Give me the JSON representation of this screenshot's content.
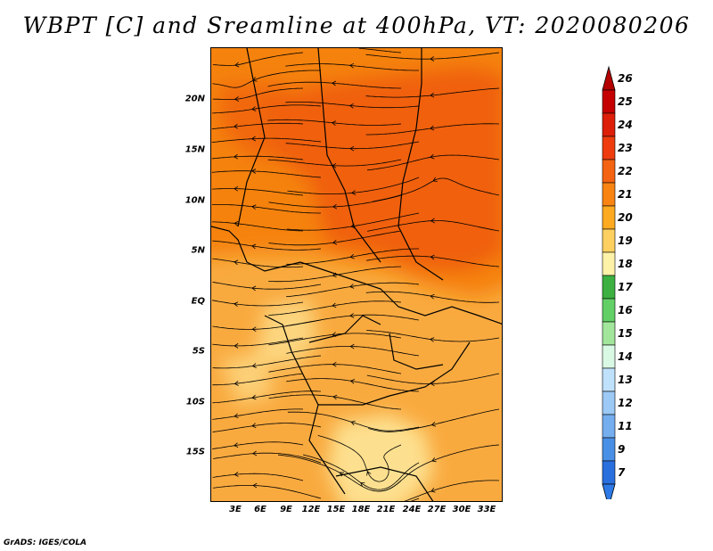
{
  "title": "WBPT [C] and Sreamline at 400hPa, VT: 2020080206",
  "footer": "GrADS: IGES/COLA",
  "map": {
    "lat_labels": [
      "20N",
      "15N",
      "10N",
      "5N",
      "EQ",
      "5S",
      "10S",
      "15S"
    ],
    "lon_labels": [
      "3E",
      "6E",
      "9E",
      "12E",
      "15E",
      "18E",
      "21E",
      "24E",
      "27E",
      "30E",
      "33E"
    ],
    "region_colors": {
      "north_warm": "#f06010",
      "mid_warm": "#f5820f",
      "south_warm": "#f9aa3f",
      "pale": "#fde08f"
    }
  },
  "colorbar": {
    "labels": [
      "26",
      "25",
      "24",
      "23",
      "22",
      "21",
      "20",
      "19",
      "18",
      "17",
      "16",
      "15",
      "14",
      "13",
      "12",
      "11",
      "9",
      "7"
    ],
    "colors": [
      "#c40000",
      "#dd1e08",
      "#ee3c0e",
      "#f46312",
      "#f98412",
      "#fdaa20",
      "#fdd060",
      "#fef2a8",
      "#3cb040",
      "#62d066",
      "#a2e69b",
      "#daf9e4",
      "#bfe1fb",
      "#9cc9f5",
      "#74aeef",
      "#4a8fe6",
      "#2a6fde"
    ],
    "top_arrow_color": "#b40000",
    "bottom_arrow_color": "#2d7ae6"
  }
}
